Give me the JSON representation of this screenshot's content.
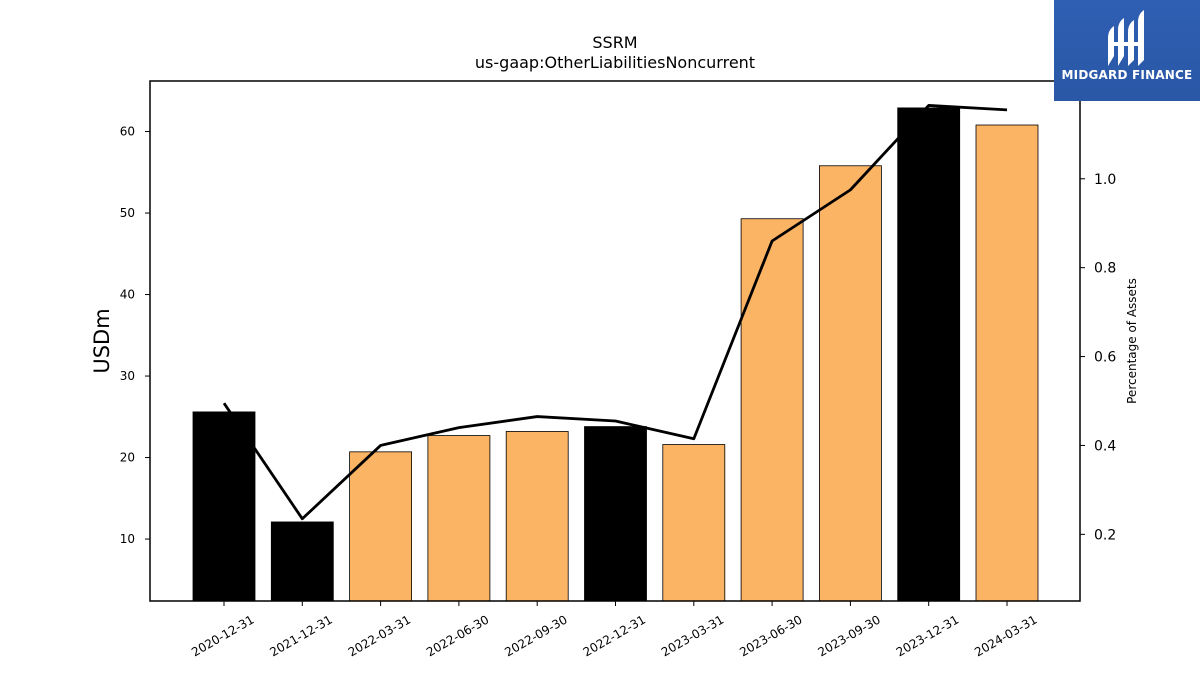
{
  "chart_data": {
    "type": "bar",
    "title": "SSRM",
    "subtitle": "us-gaap:OtherLiabilitiesNoncurrent",
    "ylabel": "USDm",
    "ylabel_right": "Percentage of Assets",
    "categories": [
      "2020-12-31",
      "2021-12-31",
      "2022-03-31",
      "2022-06-30",
      "2022-09-30",
      "2022-12-31",
      "2023-03-31",
      "2023-06-30",
      "2023-09-30",
      "2023-12-31",
      "2024-03-31"
    ],
    "values": [
      25.6,
      12.1,
      20.7,
      22.7,
      23.2,
      23.8,
      21.6,
      49.3,
      55.8,
      62.9,
      60.8
    ],
    "bar_colors": [
      "#000000",
      "#000000",
      "#fbb364",
      "#fbb364",
      "#fbb364",
      "#000000",
      "#fbb364",
      "#fbb364",
      "#fbb364",
      "#000000",
      "#fbb364"
    ],
    "line": {
      "name": "Percentage of Assets",
      "values": [
        0.495,
        0.235,
        0.4,
        0.44,
        0.465,
        0.455,
        0.415,
        0.86,
        0.975,
        1.165,
        1.155
      ],
      "color": "#000000"
    },
    "ylim": [
      2.4,
      66.2
    ],
    "ylim_right": [
      0.05,
      1.22
    ],
    "yticks": [
      10,
      20,
      30,
      40,
      50,
      60
    ],
    "yticks_right": [
      0.2,
      0.4,
      0.6,
      0.8,
      1.0
    ]
  },
  "logo": {
    "text": "MIDGARD FINANCE"
  }
}
